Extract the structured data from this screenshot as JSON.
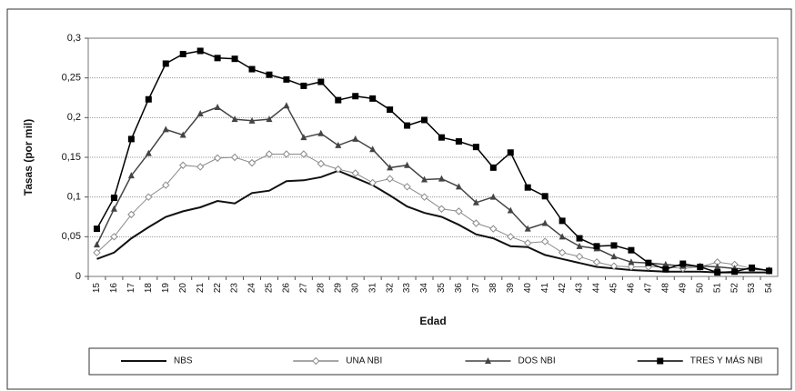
{
  "chart_data": {
    "type": "line",
    "xlabel": "Edad",
    "ylabel": "Tasas (por mil)",
    "categories": [
      "15",
      "16",
      "17",
      "18",
      "19",
      "20",
      "21",
      "22",
      "23",
      "24",
      "25",
      "26",
      "27",
      "28",
      "29",
      "30",
      "31",
      "32",
      "33",
      "34",
      "35",
      "36",
      "37",
      "38",
      "39",
      "40",
      "41",
      "42",
      "43",
      "44",
      "45",
      "46",
      "47",
      "48",
      "49",
      "50",
      "51",
      "52",
      "53",
      "54"
    ],
    "ylim": [
      0,
      0.3
    ],
    "yticks": [
      0,
      {
        "value": 0.05,
        "label": "0,05"
      },
      {
        "value": 0.1,
        "label": "0,1"
      },
      {
        "value": 0.15,
        "label": "0,15"
      },
      {
        "value": 0.2,
        "label": "0,2"
      },
      {
        "value": 0.25,
        "label": "0,25"
      },
      {
        "value": 0.3,
        "label": "0,3"
      }
    ],
    "grid": true,
    "legend": "bottom",
    "series": [
      {
        "name": "NBS",
        "color": "#111111",
        "marker": "none",
        "values": [
          0.022,
          0.03,
          0.048,
          0.062,
          0.075,
          0.082,
          0.087,
          0.095,
          0.092,
          0.105,
          0.108,
          0.12,
          0.121,
          0.125,
          0.133,
          0.124,
          0.115,
          0.102,
          0.088,
          0.08,
          0.075,
          0.065,
          0.053,
          0.048,
          0.038,
          0.037,
          0.027,
          0.022,
          0.017,
          0.012,
          0.01,
          0.008,
          0.007,
          0.006,
          0.006,
          0.006,
          0.005,
          0.005,
          0.005,
          0.005
        ]
      },
      {
        "name": "UNA NBI",
        "color": "#8a8a8a",
        "marker": "diamond",
        "values": [
          0.03,
          0.05,
          0.078,
          0.1,
          0.115,
          0.14,
          0.138,
          0.149,
          0.15,
          0.143,
          0.154,
          0.154,
          0.154,
          0.142,
          0.135,
          0.13,
          0.118,
          0.123,
          0.113,
          0.1,
          0.085,
          0.082,
          0.067,
          0.06,
          0.05,
          0.042,
          0.044,
          0.03,
          0.025,
          0.018,
          0.013,
          0.012,
          0.012,
          0.012,
          0.01,
          0.012,
          0.018,
          0.015,
          0.01,
          0.007
        ]
      },
      {
        "name": "DOS NBI",
        "color": "#444444",
        "marker": "triangle",
        "values": [
          0.04,
          0.085,
          0.127,
          0.155,
          0.185,
          0.178,
          0.205,
          0.213,
          0.198,
          0.196,
          0.198,
          0.215,
          0.175,
          0.18,
          0.165,
          0.173,
          0.16,
          0.137,
          0.14,
          0.122,
          0.123,
          0.113,
          0.093,
          0.1,
          0.083,
          0.06,
          0.067,
          0.05,
          0.038,
          0.035,
          0.025,
          0.018,
          0.017,
          0.015,
          0.013,
          0.013,
          0.012,
          0.01,
          0.009,
          0.008
        ]
      },
      {
        "name": "TRES Y MÁS NBI",
        "color": "#000000",
        "marker": "square",
        "values": [
          0.06,
          0.099,
          0.173,
          0.223,
          0.268,
          0.28,
          0.284,
          0.275,
          0.274,
          0.261,
          0.254,
          0.248,
          0.24,
          0.245,
          0.222,
          0.227,
          0.224,
          0.21,
          0.19,
          0.197,
          0.175,
          0.17,
          0.163,
          0.137,
          0.156,
          0.112,
          0.101,
          0.07,
          0.048,
          0.038,
          0.039,
          0.033,
          0.017,
          0.009,
          0.016,
          0.012,
          0.005,
          0.006,
          0.011,
          0.007
        ]
      }
    ]
  }
}
